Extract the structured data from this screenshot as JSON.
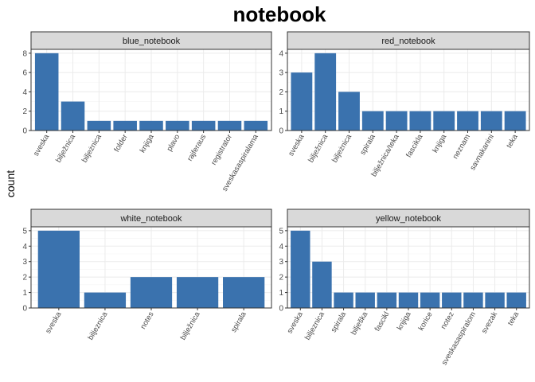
{
  "title": "notebook",
  "ylabel": "count",
  "colors": {
    "bar": "#3A72AE",
    "strip": "#D9D9D9",
    "grid_major": "#EBEBEB",
    "grid_minor": "#F5F5F5",
    "border": "#333333"
  },
  "chart_data": {
    "type": "bar",
    "title": "notebook",
    "xlabel": "",
    "ylabel": "count",
    "facets": [
      {
        "name": "blue_notebook",
        "ylim": [
          0,
          8.4
        ],
        "yticks": [
          0,
          2,
          4,
          6,
          8
        ],
        "categories": [
          "sveska",
          "bilježnica",
          "biljeżnica",
          "folder",
          "knjiga",
          "plavo",
          "rajferaus",
          "registrator",
          "sveskasaspiralama"
        ],
        "values": [
          8,
          3,
          1,
          1,
          1,
          1,
          1,
          1,
          1
        ]
      },
      {
        "name": "red_notebook",
        "ylim": [
          0,
          4.2
        ],
        "yticks": [
          0,
          1,
          2,
          3,
          4
        ],
        "categories": [
          "sveska",
          "bilježnica",
          "biljeżnica",
          "spirala",
          "bilježnica/teka",
          "fascikla",
          "knjiga",
          "neznam",
          "savnakanini",
          "teka"
        ],
        "values": [
          3,
          4,
          2,
          1,
          1,
          1,
          1,
          1,
          1,
          1
        ]
      },
      {
        "name": "white_notebook",
        "ylim": [
          0,
          5.25
        ],
        "yticks": [
          0,
          1,
          2,
          3,
          4,
          5
        ],
        "categories": [
          "sveska",
          "biljeznica",
          "notes",
          "bilježnica",
          "spirala"
        ],
        "values": [
          5,
          1,
          2,
          2,
          2
        ]
      },
      {
        "name": "yellow_notebook",
        "ylim": [
          0,
          5.25
        ],
        "yticks": [
          0,
          1,
          2,
          3,
          4,
          5
        ],
        "categories": [
          "sveska",
          "biljeznica",
          "spirala",
          "bilješka",
          "fascikl",
          "knjiga",
          "korice",
          "notez",
          "sveskasaspiralom",
          "svezak",
          "teka"
        ],
        "values": [
          5,
          3,
          1,
          1,
          1,
          1,
          1,
          1,
          1,
          1,
          1
        ]
      }
    ]
  }
}
